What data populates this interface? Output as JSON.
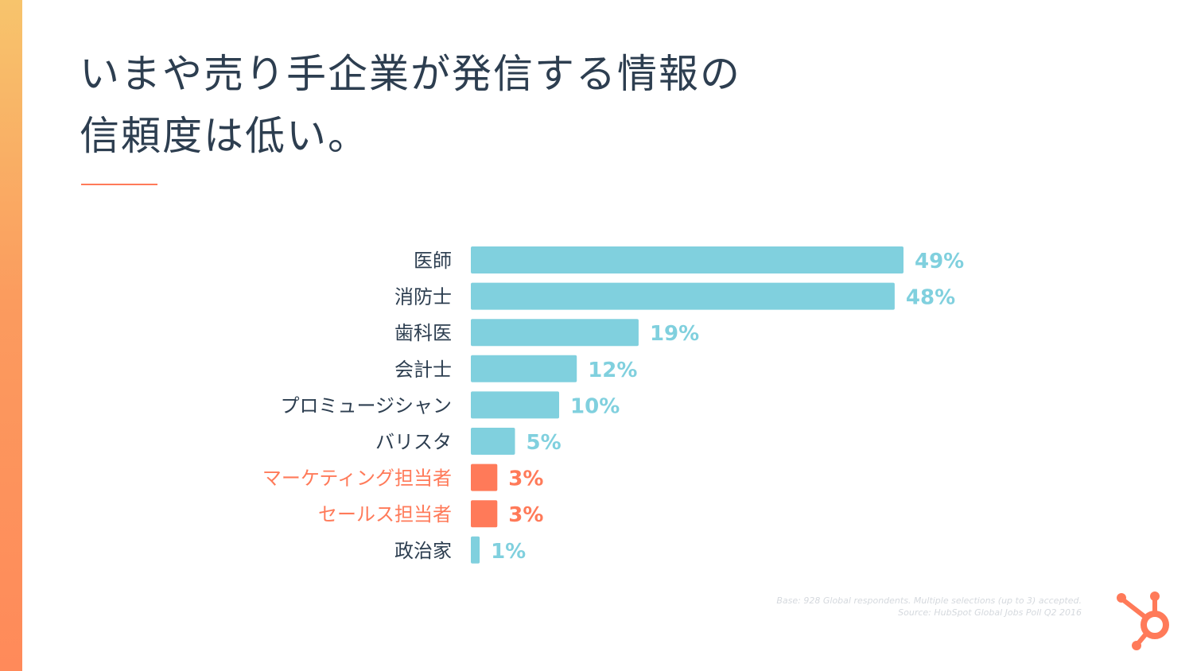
{
  "title": {
    "line1": "いまや売り手企業が発信する情報の",
    "line2": "信頼度は低い。"
  },
  "colors": {
    "bar": "#80d0de",
    "highlight": "#ff7a59",
    "label": "#2d3e50",
    "accent": "#ff7a59"
  },
  "chart_data": {
    "type": "bar",
    "orientation": "horizontal",
    "categories": [
      "医師",
      "消防士",
      "歯科医",
      "会計士",
      "プロミュージシャン",
      "バリスタ",
      "マーケティング担当者",
      "セールス担当者",
      "政治家"
    ],
    "values": [
      49,
      48,
      19,
      12,
      10,
      5,
      3,
      3,
      1
    ],
    "value_labels": [
      "49%",
      "48%",
      "19%",
      "12%",
      "10%",
      "5%",
      "3%",
      "3%",
      "1%"
    ],
    "highlighted": [
      false,
      false,
      false,
      false,
      false,
      false,
      true,
      true,
      false
    ],
    "xlim": [
      0,
      49
    ],
    "grid": false,
    "legend": "none"
  },
  "footnote": {
    "line1": "Base: 928 Global respondents. Multiple selections (up to 3) accepted.",
    "line2": "Source: HubSpot Global Jobs Poll Q2 2016"
  },
  "logo": {
    "icon": "hubspot-sprocket-icon"
  }
}
